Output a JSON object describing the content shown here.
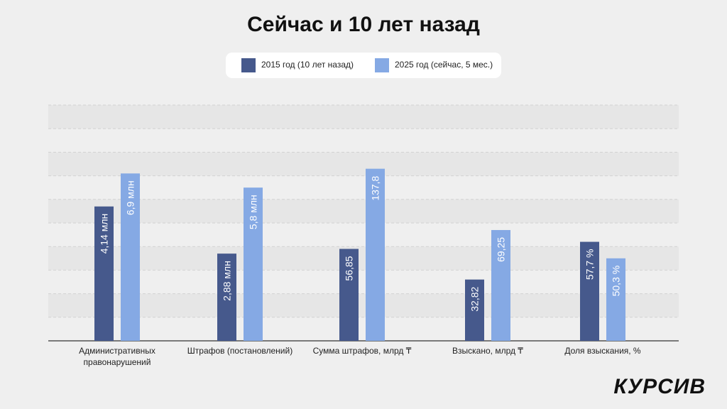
{
  "chart_data": {
    "type": "bar",
    "title": "Сейчас и 10 лет назад",
    "categories": [
      "Административных правонарушений",
      "Штрафов (постановлений)",
      "Сумма штрафов, млрд ₸",
      "Взыскано, млрд ₸",
      "Доля взыскания, %"
    ],
    "category_lines": [
      [
        "Административных",
        "правонарушений"
      ],
      [
        "Штрафов (постановлений)"
      ],
      [
        "Сумма штрафов, млрд ₸"
      ],
      [
        "Взыскано, млрд ₸"
      ],
      [
        "Доля взыскания, %"
      ]
    ],
    "series": [
      {
        "name": "2015 год (10 лет назад)",
        "color": "#46598c",
        "values": [
          4.14,
          2.88,
          56.85,
          32.82,
          57.7
        ],
        "labels": [
          "4,14 млн",
          "2,88 млн",
          "56,85",
          "32,82",
          "57,7 %"
        ],
        "relative_heights": [
          0.57,
          0.37,
          0.39,
          0.26,
          0.42
        ]
      },
      {
        "name": "2025 год (сейчас, 5 мес.)",
        "color": "#85a9e4",
        "values": [
          6.9,
          5.8,
          137.8,
          69.25,
          50.3
        ],
        "labels": [
          "6,9 млн",
          "5,8 млн",
          "137,8",
          "69,25",
          "50,3 %"
        ],
        "relative_heights": [
          0.71,
          0.65,
          0.73,
          0.47,
          0.35
        ]
      }
    ],
    "legend_position": "top-center",
    "grid": true,
    "ylabel": "",
    "xlabel": ""
  },
  "brand": {
    "logo_text": "КУРСИВ"
  }
}
